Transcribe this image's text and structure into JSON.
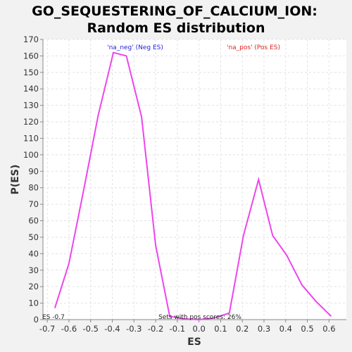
{
  "chart_data": {
    "type": "line",
    "title_lines": [
      "GO_SEQUESTERING_OF_CALCIUM_ION:",
      "Random ES distribution"
    ],
    "xlabel": "ES",
    "ylabel": "P(ES)",
    "xlim": [
      -0.72,
      0.68
    ],
    "ylim": [
      0,
      170
    ],
    "xticks": [
      -0.7,
      -0.6,
      -0.5,
      -0.4,
      -0.3,
      -0.2,
      -0.1,
      0.0,
      0.1,
      0.2,
      0.3,
      0.4,
      0.5,
      0.6
    ],
    "yticks": [
      0,
      10,
      20,
      30,
      40,
      50,
      60,
      70,
      80,
      90,
      100,
      110,
      120,
      130,
      140,
      150,
      160,
      170
    ],
    "grid": true,
    "series": [
      {
        "color": "#ee44ee",
        "x": [
          -0.665,
          -0.6,
          -0.53,
          -0.465,
          -0.395,
          -0.335,
          -0.265,
          -0.2,
          -0.135,
          -0.07,
          0.0,
          0.07,
          0.14,
          0.205,
          0.275,
          0.34,
          0.405,
          0.475,
          0.54,
          0.61
        ],
        "y": [
          7,
          34,
          80,
          124,
          162,
          160,
          123,
          45,
          2,
          0.5,
          0,
          1,
          4,
          51,
          85,
          51,
          39,
          21,
          11,
          2
        ]
      }
    ],
    "annotations": {
      "neg_label": "'na_neg' (Neg ES)",
      "pos_label": "'na_pos' (Pos ES)",
      "es_label": "ES -0.7",
      "sets_label": "Sets with pos scores: 26%"
    },
    "colors": {
      "neg": "#2222dd",
      "pos": "#dd2222",
      "line": "#ee44ee"
    }
  }
}
